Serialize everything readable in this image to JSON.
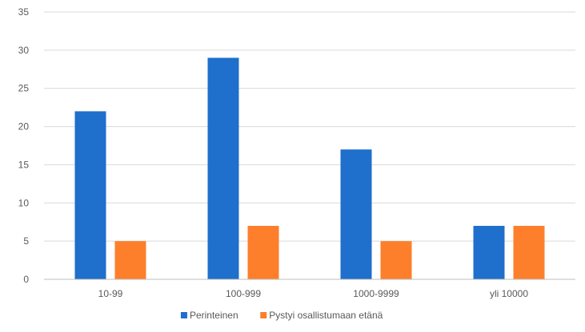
{
  "chart_data": {
    "type": "bar",
    "title": "",
    "xlabel": "",
    "ylabel": "",
    "categories": [
      "10-99",
      "100-999",
      "1000-9999",
      "yli 10000"
    ],
    "series": [
      {
        "name": "Perinteinen",
        "values": [
          22,
          29,
          17,
          7
        ],
        "color": "#1f6fcc"
      },
      {
        "name": "Pystyi osallistumaan etänä",
        "values": [
          5,
          7,
          5,
          7
        ],
        "color": "#fd7f2c"
      }
    ],
    "ylim": [
      0,
      35
    ],
    "yticks": [
      "0",
      "5",
      "10",
      "15",
      "20",
      "25",
      "30",
      "35"
    ],
    "grid": true,
    "legend_position": "bottom"
  }
}
